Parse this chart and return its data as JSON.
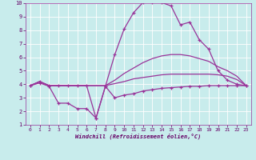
{
  "xlabel": "Windchill (Refroidissement éolien,°C)",
  "xlim": [
    -0.5,
    23.5
  ],
  "ylim": [
    1,
    10
  ],
  "xticks": [
    0,
    1,
    2,
    3,
    4,
    5,
    6,
    7,
    8,
    9,
    10,
    11,
    12,
    13,
    14,
    15,
    16,
    17,
    18,
    19,
    20,
    21,
    22,
    23
  ],
  "yticks": [
    1,
    2,
    3,
    4,
    5,
    6,
    7,
    8,
    9,
    10
  ],
  "background_color": "#c8ecec",
  "line_color": "#993399",
  "grid_color": "#ffffff",
  "lines": [
    {
      "x": [
        0,
        1,
        2,
        3,
        4,
        5,
        6,
        7,
        8,
        9,
        10,
        11,
        12,
        13,
        14,
        15,
        16,
        17,
        18,
        19,
        20,
        21,
        22,
        23
      ],
      "y": [
        3.9,
        4.2,
        3.9,
        3.9,
        3.9,
        3.9,
        3.9,
        1.5,
        3.85,
        6.2,
        8.1,
        9.3,
        10.05,
        10.05,
        10.05,
        9.8,
        8.4,
        8.6,
        7.3,
        6.6,
        5.0,
        4.3,
        4.0,
        3.9
      ],
      "marker": "+",
      "lw": 0.9
    },
    {
      "x": [
        0,
        1,
        2,
        3,
        4,
        5,
        6,
        7,
        8,
        9,
        10,
        11,
        12,
        13,
        14,
        15,
        16,
        17,
        18,
        19,
        20,
        21,
        22,
        23
      ],
      "y": [
        3.9,
        4.2,
        3.9,
        3.9,
        3.9,
        3.9,
        3.9,
        3.9,
        3.9,
        4.3,
        4.8,
        5.2,
        5.6,
        5.9,
        6.1,
        6.2,
        6.2,
        6.1,
        5.9,
        5.7,
        5.3,
        5.0,
        4.6,
        3.9
      ],
      "marker": null,
      "lw": 0.9
    },
    {
      "x": [
        0,
        1,
        2,
        3,
        4,
        5,
        6,
        7,
        8,
        9,
        10,
        11,
        12,
        13,
        14,
        15,
        16,
        17,
        18,
        19,
        20,
        21,
        22,
        23
      ],
      "y": [
        3.9,
        4.1,
        3.85,
        2.6,
        2.6,
        2.2,
        2.2,
        1.5,
        3.85,
        3.0,
        3.2,
        3.3,
        3.5,
        3.6,
        3.7,
        3.75,
        3.8,
        3.85,
        3.85,
        3.9,
        3.9,
        3.9,
        3.9,
        3.9
      ],
      "marker": "+",
      "lw": 0.9
    },
    {
      "x": [
        0,
        1,
        2,
        3,
        4,
        5,
        6,
        7,
        8,
        9,
        10,
        11,
        12,
        13,
        14,
        15,
        16,
        17,
        18,
        19,
        20,
        21,
        22,
        23
      ],
      "y": [
        3.9,
        4.2,
        3.9,
        3.9,
        3.9,
        3.9,
        3.9,
        3.9,
        3.9,
        4.05,
        4.2,
        4.4,
        4.5,
        4.6,
        4.7,
        4.75,
        4.75,
        4.75,
        4.75,
        4.75,
        4.7,
        4.6,
        4.35,
        3.9
      ],
      "marker": null,
      "lw": 0.9
    }
  ]
}
